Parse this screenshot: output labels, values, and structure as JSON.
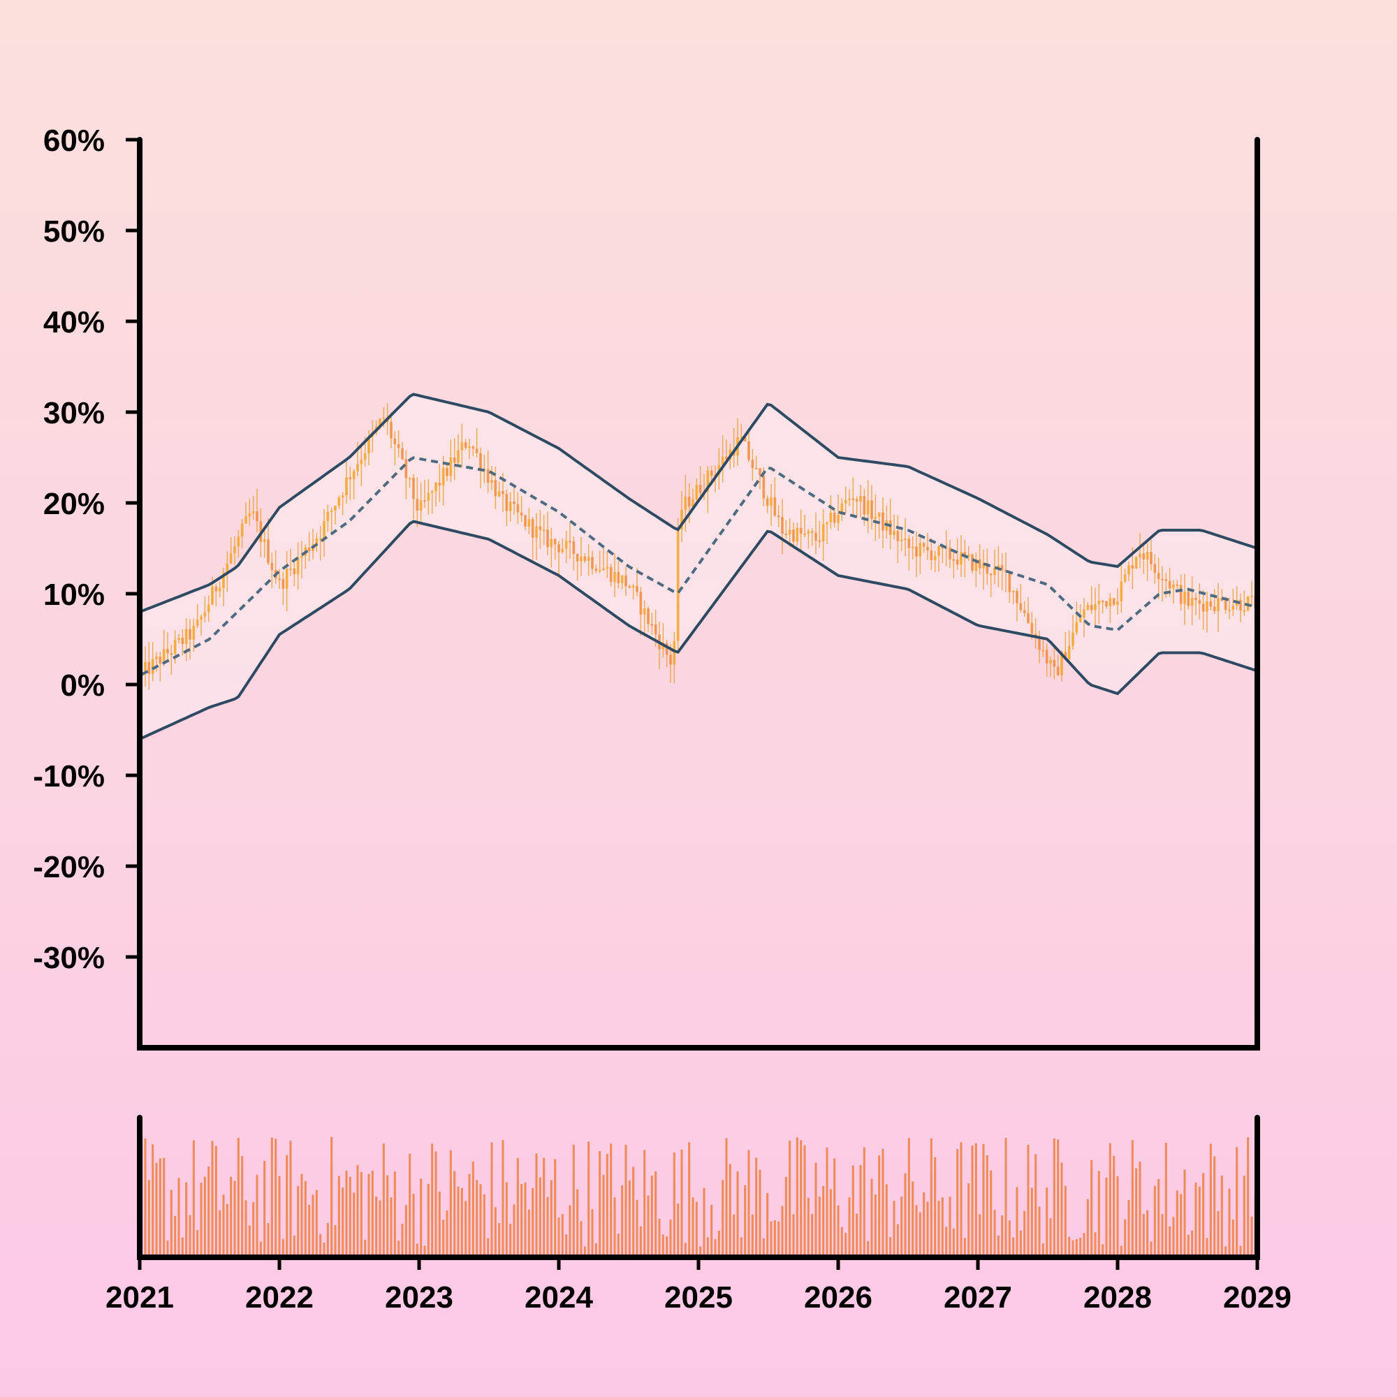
{
  "chart_data": {
    "type": "candlestick",
    "title": "",
    "xlabel": "",
    "ylabel": "",
    "ylim": [
      -0.4,
      0.6
    ],
    "xlim": [
      2021,
      2029
    ],
    "y_tick_values": [
      0.6,
      0.5,
      0.4,
      0.3,
      0.2,
      0.1,
      0.0,
      -0.1,
      -0.2,
      -0.3
    ],
    "y_tick_labels": [
      "60%",
      "50%",
      "40%",
      "30%",
      "20%",
      "10%",
      "0%",
      "-10%",
      "-20%",
      "-30%"
    ],
    "x_tick_values": [
      2021,
      2022,
      2023,
      2024,
      2025,
      2026,
      2027,
      2028,
      2029
    ],
    "x_tick_labels": [
      "2021",
      "2022",
      "2023",
      "2024",
      "2025",
      "2026",
      "2027",
      "2028",
      "2029"
    ],
    "price_anchors": [
      [
        2021.0,
        0.01
      ],
      [
        2021.4,
        0.06
      ],
      [
        2021.8,
        0.19
      ],
      [
        2022.0,
        0.11
      ],
      [
        2022.3,
        0.17
      ],
      [
        2022.5,
        0.23
      ],
      [
        2022.75,
        0.295
      ],
      [
        2023.0,
        0.19
      ],
      [
        2023.35,
        0.27
      ],
      [
        2023.6,
        0.2
      ],
      [
        2023.9,
        0.16
      ],
      [
        2024.2,
        0.14
      ],
      [
        2024.5,
        0.11
      ],
      [
        2024.82,
        0.02
      ],
      [
        2024.86,
        0.19
      ],
      [
        2025.3,
        0.27
      ],
      [
        2025.6,
        0.17
      ],
      [
        2025.85,
        0.16
      ],
      [
        2026.1,
        0.21
      ],
      [
        2026.5,
        0.15
      ],
      [
        2026.85,
        0.14
      ],
      [
        2027.2,
        0.12
      ],
      [
        2027.55,
        0.01
      ],
      [
        2027.75,
        0.08
      ],
      [
        2028.0,
        0.1
      ],
      [
        2028.15,
        0.15
      ],
      [
        2028.5,
        0.09
      ],
      [
        2029.0,
        0.09
      ]
    ],
    "moving_average": [
      [
        2021.0,
        0.01
      ],
      [
        2021.5,
        0.05
      ],
      [
        2022.0,
        0.125
      ],
      [
        2022.5,
        0.18
      ],
      [
        2022.95,
        0.25
      ],
      [
        2023.5,
        0.235
      ],
      [
        2024.0,
        0.19
      ],
      [
        2024.5,
        0.13
      ],
      [
        2024.85,
        0.1
      ],
      [
        2025.5,
        0.24
      ],
      [
        2026.0,
        0.19
      ],
      [
        2026.5,
        0.17
      ],
      [
        2027.0,
        0.135
      ],
      [
        2027.5,
        0.11
      ],
      [
        2027.8,
        0.065
      ],
      [
        2028.0,
        0.06
      ],
      [
        2028.3,
        0.1
      ],
      [
        2028.5,
        0.105
      ],
      [
        2029.0,
        0.085
      ]
    ],
    "upper_band": [
      [
        2021.0,
        0.08
      ],
      [
        2021.5,
        0.11
      ],
      [
        2021.7,
        0.13
      ],
      [
        2022.0,
        0.195
      ],
      [
        2022.5,
        0.25
      ],
      [
        2022.95,
        0.32
      ],
      [
        2023.5,
        0.3
      ],
      [
        2024.0,
        0.26
      ],
      [
        2024.5,
        0.205
      ],
      [
        2024.85,
        0.17
      ],
      [
        2025.5,
        0.31
      ],
      [
        2026.0,
        0.25
      ],
      [
        2026.5,
        0.24
      ],
      [
        2027.0,
        0.205
      ],
      [
        2027.5,
        0.165
      ],
      [
        2027.8,
        0.135
      ],
      [
        2028.0,
        0.13
      ],
      [
        2028.3,
        0.17
      ],
      [
        2028.6,
        0.17
      ],
      [
        2029.0,
        0.15
      ]
    ],
    "lower_band": [
      [
        2021.0,
        -0.06
      ],
      [
        2021.5,
        -0.025
      ],
      [
        2021.7,
        -0.015
      ],
      [
        2022.0,
        0.055
      ],
      [
        2022.5,
        0.105
      ],
      [
        2022.95,
        0.18
      ],
      [
        2023.5,
        0.16
      ],
      [
        2024.0,
        0.12
      ],
      [
        2024.5,
        0.065
      ],
      [
        2024.85,
        0.035
      ],
      [
        2025.5,
        0.17
      ],
      [
        2026.0,
        0.12
      ],
      [
        2026.5,
        0.105
      ],
      [
        2027.0,
        0.065
      ],
      [
        2027.5,
        0.05
      ],
      [
        2027.8,
        0.0
      ],
      [
        2028.0,
        -0.01
      ],
      [
        2028.3,
        0.035
      ],
      [
        2028.6,
        0.035
      ],
      [
        2029.0,
        0.015
      ]
    ],
    "volume_scale": [
      0,
      1
    ],
    "colors": {
      "background_top": "#fbe0dc",
      "background_bottom": "#fcc8e6",
      "axis": "#000000",
      "candle_up": "#f5a623",
      "candle_down": "#f08a3c",
      "candle_wick": "#e8a23a",
      "band_line": "#2e4a63",
      "ma_line": "#4e6a80",
      "band_fill": "#ffffff",
      "volume": "#ee8a55"
    }
  }
}
